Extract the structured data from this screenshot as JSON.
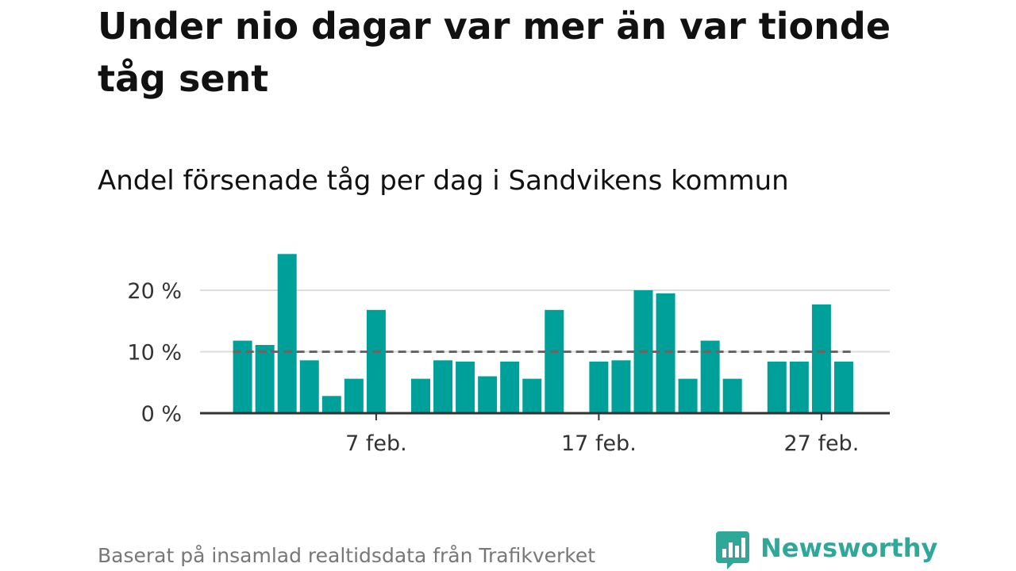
{
  "headline": "Under nio dagar var mer än var tionde tåg sent",
  "subheadline": "Andel försenade tåg per dag i Sandvikens kommun",
  "source_note": "Baserat på insamlad realtidsdata från Trafikverket",
  "brand": {
    "name": "Newsworthy",
    "icon": "bar-chart-speech-bubble-icon",
    "color": "#2fa89a"
  },
  "chart_data": {
    "type": "bar",
    "title": "Andel försenade tåg per dag i Sandvikens kommun",
    "xlabel": "",
    "ylabel": "",
    "x_unit": "day of February",
    "x": [
      1,
      2,
      3,
      4,
      5,
      6,
      7,
      8,
      9,
      10,
      11,
      12,
      13,
      14,
      15,
      16,
      17,
      18,
      19,
      20,
      21,
      22,
      23,
      24,
      25,
      26,
      27,
      28
    ],
    "values": [
      11.8,
      11.1,
      25.9,
      8.6,
      2.8,
      5.6,
      16.8,
      null,
      5.6,
      8.6,
      8.4,
      6.0,
      8.4,
      5.6,
      16.8,
      null,
      8.4,
      8.6,
      20.0,
      19.5,
      5.6,
      11.8,
      5.6,
      null,
      8.4,
      8.4,
      17.7,
      8.4
    ],
    "ylim": [
      0,
      26
    ],
    "y_ticks": [
      0,
      10,
      20
    ],
    "y_tick_labels": [
      "0 %",
      "10 %",
      "20 %"
    ],
    "x_ticks": [
      7,
      17,
      27
    ],
    "x_tick_labels": [
      "7 feb.",
      "17 feb.",
      "27 feb."
    ],
    "reference_line": {
      "value": 10,
      "style": "dashed"
    },
    "grid": true,
    "colors": {
      "bar": "#00a09a",
      "reference": "#666666",
      "grid": "#dddddd",
      "axis": "#333333"
    }
  }
}
